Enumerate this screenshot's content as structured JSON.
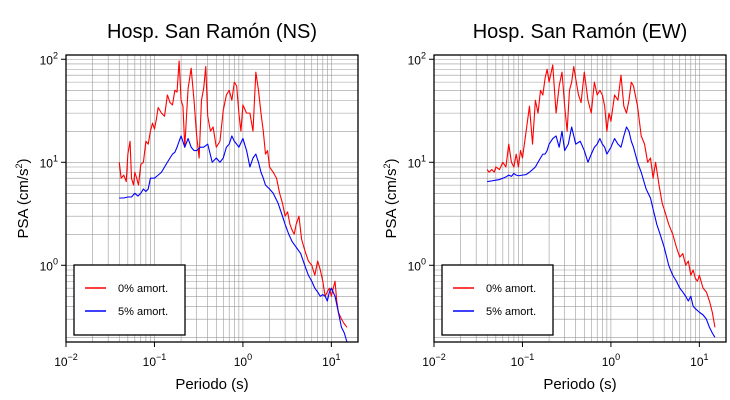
{
  "chart_data": [
    {
      "type": "line",
      "title": "Hosp. San Ramón (NS)",
      "xlabel": "Periodo (s)",
      "ylabel": {
        "base": "PSA (cm/s",
        "exp": "2",
        "close": ")"
      },
      "xscale": "log",
      "yscale": "log",
      "xlim": [
        0.01,
        20
      ],
      "ylim": [
        0.18,
        110
      ],
      "xticks": [
        {
          "base": "10",
          "exp": "−2",
          "value": 0.01
        },
        {
          "base": "10",
          "exp": "−1",
          "value": 0.1
        },
        {
          "base": "10",
          "exp": "0",
          "value": 1
        },
        {
          "base": "10",
          "exp": "1",
          "value": 10
        }
      ],
      "yticks": [
        {
          "base": "10",
          "exp": "0",
          "value": 1
        },
        {
          "base": "10",
          "exp": "1",
          "value": 10
        },
        {
          "base": "10",
          "exp": "2",
          "value": 100
        }
      ],
      "grid": true,
      "legend_position": "bottom-left",
      "series": [
        {
          "name": "0% amort.",
          "color": "#ff0000",
          "x": [
            0.04,
            0.042,
            0.045,
            0.048,
            0.05,
            0.053,
            0.055,
            0.058,
            0.06,
            0.063,
            0.066,
            0.07,
            0.075,
            0.08,
            0.085,
            0.09,
            0.095,
            0.1,
            0.105,
            0.11,
            0.12,
            0.13,
            0.14,
            0.15,
            0.16,
            0.17,
            0.18,
            0.19,
            0.2,
            0.21,
            0.22,
            0.24,
            0.26,
            0.28,
            0.3,
            0.32,
            0.34,
            0.36,
            0.38,
            0.4,
            0.43,
            0.46,
            0.5,
            0.55,
            0.6,
            0.65,
            0.7,
            0.75,
            0.8,
            0.85,
            0.9,
            0.95,
            1.0,
            1.1,
            1.2,
            1.3,
            1.4,
            1.5,
            1.6,
            1.7,
            1.8,
            1.9,
            2.0,
            2.2,
            2.4,
            2.6,
            2.8,
            3.0,
            3.2,
            3.4,
            3.6,
            3.8,
            4.0,
            4.3,
            4.6,
            5.0,
            5.5,
            6.0,
            6.5,
            7.0,
            7.5,
            8.0,
            8.5,
            9.0,
            9.5,
            10.0,
            10.5,
            11.0,
            11.5,
            12.0,
            13.0,
            14.0,
            15.0
          ],
          "y": [
            10.0,
            7.0,
            7.5,
            6.5,
            12.0,
            16.0,
            7.0,
            6.0,
            8.0,
            7.0,
            6.0,
            9.5,
            10.0,
            16.0,
            15.0,
            20.0,
            24.0,
            21.0,
            26.0,
            34.0,
            30.0,
            28.0,
            45.0,
            38.0,
            36.0,
            50.0,
            48.0,
            96.0,
            40.0,
            35.0,
            14.0,
            52.0,
            82.0,
            40.0,
            18.0,
            11.0,
            40.0,
            52.0,
            85.0,
            28.0,
            20.0,
            22.0,
            14.0,
            16.0,
            32.0,
            45.0,
            50.0,
            40.0,
            60.0,
            55.0,
            30.0,
            20.0,
            36.0,
            30.0,
            30.0,
            20.0,
            75.0,
            50.0,
            30.0,
            20.0,
            12.0,
            13.0,
            9.0,
            8.0,
            7.0,
            5.0,
            4.0,
            3.0,
            3.3,
            2.5,
            2.2,
            2.0,
            2.5,
            3.0,
            1.8,
            1.4,
            1.1,
            1.0,
            0.8,
            1.1,
            0.9,
            0.7,
            0.5,
            0.55,
            0.6,
            0.5,
            0.6,
            0.7,
            0.45,
            0.35,
            0.3,
            0.27,
            0.25
          ]
        },
        {
          "name": "5% amort.",
          "color": "#0000ff",
          "x": [
            0.04,
            0.045,
            0.05,
            0.055,
            0.06,
            0.065,
            0.07,
            0.075,
            0.08,
            0.085,
            0.09,
            0.1,
            0.11,
            0.12,
            0.13,
            0.14,
            0.15,
            0.16,
            0.17,
            0.18,
            0.19,
            0.2,
            0.22,
            0.24,
            0.26,
            0.28,
            0.3,
            0.33,
            0.36,
            0.4,
            0.45,
            0.5,
            0.55,
            0.6,
            0.65,
            0.7,
            0.75,
            0.8,
            0.85,
            0.9,
            1.0,
            1.1,
            1.2,
            1.3,
            1.4,
            1.5,
            1.6,
            1.7,
            1.8,
            2.0,
            2.2,
            2.5,
            2.8,
            3.0,
            3.3,
            3.6,
            4.0,
            4.5,
            5.0,
            5.5,
            6.0,
            6.5,
            7.0,
            7.5,
            8.0,
            8.5,
            9.0,
            9.5,
            10.0,
            11.0,
            12.0,
            13.0,
            14.0,
            15.0
          ],
          "y": [
            4.5,
            4.5,
            4.6,
            4.6,
            5.0,
            4.7,
            5.0,
            5.5,
            5.2,
            5.5,
            7.0,
            7.0,
            7.5,
            8.0,
            9.0,
            10.0,
            11.0,
            12.0,
            12.5,
            14.0,
            16.0,
            18.0,
            14.0,
            17.0,
            14.0,
            13.0,
            13.0,
            14.0,
            14.0,
            15.0,
            10.0,
            11.0,
            10.0,
            11.0,
            14.0,
            15.0,
            18.0,
            16.0,
            15.0,
            14.0,
            17.0,
            13.0,
            9.0,
            11.0,
            12.0,
            10.0,
            8.0,
            7.0,
            6.0,
            5.5,
            5.0,
            4.0,
            3.0,
            2.5,
            2.0,
            1.7,
            1.5,
            1.3,
            1.0,
            0.8,
            0.7,
            0.6,
            0.55,
            0.5,
            0.52,
            0.5,
            0.45,
            0.55,
            0.6,
            0.5,
            0.35,
            0.25,
            0.22,
            0.18
          ]
        }
      ]
    },
    {
      "type": "line",
      "title": "Hosp. San Ramón (EW)",
      "xlabel": "Periodo (s)",
      "ylabel": {
        "base": "PSA (cm/s",
        "exp": "2",
        "close": ")"
      },
      "xscale": "log",
      "yscale": "log",
      "xlim": [
        0.01,
        20
      ],
      "ylim": [
        0.18,
        110
      ],
      "xticks": [
        {
          "base": "10",
          "exp": "−2",
          "value": 0.01
        },
        {
          "base": "10",
          "exp": "−1",
          "value": 0.1
        },
        {
          "base": "10",
          "exp": "0",
          "value": 1
        },
        {
          "base": "10",
          "exp": "1",
          "value": 10
        }
      ],
      "yticks": [
        {
          "base": "10",
          "exp": "0",
          "value": 1
        },
        {
          "base": "10",
          "exp": "1",
          "value": 10
        },
        {
          "base": "10",
          "exp": "2",
          "value": 100
        }
      ],
      "grid": true,
      "legend_position": "bottom-left",
      "series": [
        {
          "name": "0% amort.",
          "color": "#ff0000",
          "x": [
            0.04,
            0.042,
            0.045,
            0.048,
            0.05,
            0.055,
            0.06,
            0.065,
            0.07,
            0.075,
            0.08,
            0.085,
            0.09,
            0.095,
            0.1,
            0.11,
            0.12,
            0.13,
            0.14,
            0.15,
            0.16,
            0.17,
            0.18,
            0.19,
            0.2,
            0.22,
            0.24,
            0.26,
            0.28,
            0.3,
            0.32,
            0.34,
            0.36,
            0.38,
            0.4,
            0.43,
            0.46,
            0.5,
            0.55,
            0.6,
            0.65,
            0.7,
            0.75,
            0.8,
            0.85,
            0.9,
            0.95,
            1.0,
            1.1,
            1.2,
            1.3,
            1.4,
            1.5,
            1.6,
            1.7,
            1.8,
            2.0,
            2.2,
            2.4,
            2.6,
            2.8,
            3.0,
            3.2,
            3.5,
            3.8,
            4.0,
            4.5,
            5.0,
            5.5,
            6.0,
            6.5,
            7.0,
            7.5,
            8.0,
            8.5,
            9.0,
            9.5,
            10.0,
            11.0,
            12.0,
            13.0,
            14.0,
            15.0
          ],
          "y": [
            8.5,
            8.0,
            8.5,
            8.0,
            9.0,
            8.5,
            10.0,
            9.0,
            15.0,
            10.0,
            9.0,
            12.0,
            9.0,
            13.0,
            11.0,
            20.0,
            35.0,
            15.0,
            40.0,
            30.0,
            50.0,
            45.0,
            65.0,
            80.0,
            60.0,
            88.0,
            30.0,
            55.0,
            75.0,
            35.0,
            20.0,
            50.0,
            60.0,
            85.0,
            65.0,
            45.0,
            38.0,
            75.0,
            40.0,
            30.0,
            60.0,
            45.0,
            50.0,
            45.0,
            35.0,
            20.0,
            30.0,
            25.0,
            45.0,
            40.0,
            70.0,
            35.0,
            30.0,
            40.0,
            60.0,
            55.0,
            35.0,
            18.0,
            15.0,
            10.0,
            11.0,
            7.0,
            10.0,
            6.0,
            4.0,
            3.5,
            2.5,
            2.0,
            1.5,
            1.2,
            1.3,
            1.0,
            1.1,
            0.8,
            0.9,
            0.75,
            0.7,
            0.8,
            0.6,
            0.55,
            0.45,
            0.35,
            0.25
          ]
        },
        {
          "name": "5% amort.",
          "color": "#0000ff",
          "x": [
            0.04,
            0.045,
            0.05,
            0.055,
            0.06,
            0.065,
            0.07,
            0.075,
            0.08,
            0.085,
            0.09,
            0.1,
            0.11,
            0.12,
            0.13,
            0.14,
            0.15,
            0.16,
            0.17,
            0.18,
            0.19,
            0.2,
            0.22,
            0.24,
            0.26,
            0.28,
            0.3,
            0.33,
            0.36,
            0.4,
            0.45,
            0.5,
            0.55,
            0.6,
            0.65,
            0.7,
            0.75,
            0.8,
            0.85,
            0.9,
            1.0,
            1.1,
            1.2,
            1.3,
            1.4,
            1.5,
            1.6,
            1.7,
            1.8,
            2.0,
            2.2,
            2.5,
            2.8,
            3.0,
            3.3,
            3.6,
            4.0,
            4.5,
            5.0,
            5.5,
            6.0,
            6.5,
            7.0,
            7.5,
            8.0,
            8.5,
            9.0,
            10.0,
            11.0,
            12.0,
            13.0,
            14.0,
            15.0
          ],
          "y": [
            6.5,
            6.6,
            6.7,
            6.8,
            7.0,
            7.2,
            7.5,
            7.3,
            7.8,
            7.5,
            7.4,
            7.5,
            7.6,
            8.0,
            8.5,
            9.0,
            10.0,
            11.0,
            12.0,
            12.0,
            13.0,
            15.0,
            17.0,
            18.0,
            14.0,
            20.0,
            13.0,
            15.0,
            22.0,
            15.0,
            16.0,
            13.0,
            10.0,
            12.0,
            14.0,
            15.0,
            17.0,
            15.0,
            14.0,
            12.0,
            14.0,
            17.0,
            15.0,
            14.0,
            18.0,
            22.0,
            20.0,
            16.0,
            14.0,
            10.0,
            8.0,
            5.5,
            4.5,
            3.5,
            2.5,
            2.0,
            1.5,
            1.0,
            0.8,
            0.7,
            0.6,
            0.55,
            0.5,
            0.45,
            0.5,
            0.4,
            0.38,
            0.35,
            0.33,
            0.3,
            0.25,
            0.22,
            0.2
          ]
        }
      ]
    }
  ]
}
